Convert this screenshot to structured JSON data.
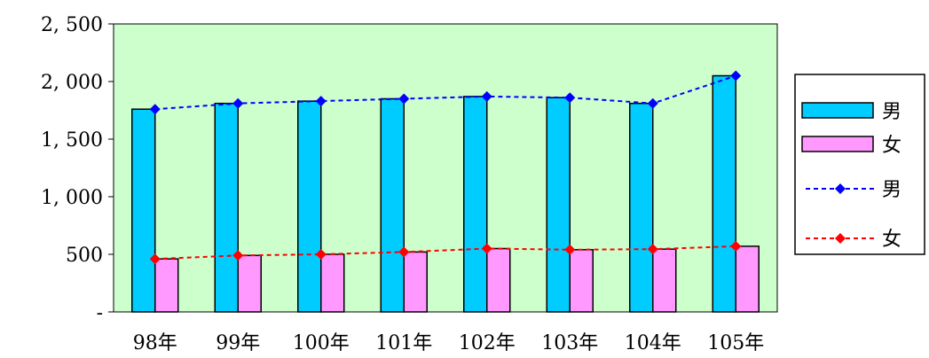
{
  "chart_data": {
    "type": "bar",
    "categories": [
      "98年",
      "99年",
      "100年",
      "101年",
      "102年",
      "103年",
      "104年",
      "105年"
    ],
    "series": [
      {
        "name": "男",
        "kind": "bar",
        "color": "#00ccff",
        "values": [
          1760,
          1810,
          1830,
          1850,
          1870,
          1860,
          1810,
          2050
        ]
      },
      {
        "name": "女",
        "kind": "bar",
        "color": "#ff99ff",
        "values": [
          460,
          490,
          500,
          520,
          550,
          540,
          545,
          570
        ]
      },
      {
        "name": "男",
        "kind": "line",
        "color": "#0000ff",
        "values": [
          1760,
          1810,
          1830,
          1850,
          1870,
          1860,
          1810,
          2050
        ]
      },
      {
        "name": "女",
        "kind": "line",
        "color": "#ff0000",
        "values": [
          460,
          490,
          500,
          520,
          550,
          540,
          545,
          570
        ]
      }
    ],
    "ylim": [
      0,
      2500
    ],
    "yticks": [
      {
        "value": 0,
        "label": "-"
      },
      {
        "value": 500,
        "label": "500"
      },
      {
        "value": 1000,
        "label": "1, 000"
      },
      {
        "value": 1500,
        "label": "1, 500"
      },
      {
        "value": 2000,
        "label": "2, 000"
      },
      {
        "value": 2500,
        "label": "2, 500"
      }
    ],
    "grid": false,
    "plot_background": "#ccffcc",
    "legend_position": "right"
  }
}
